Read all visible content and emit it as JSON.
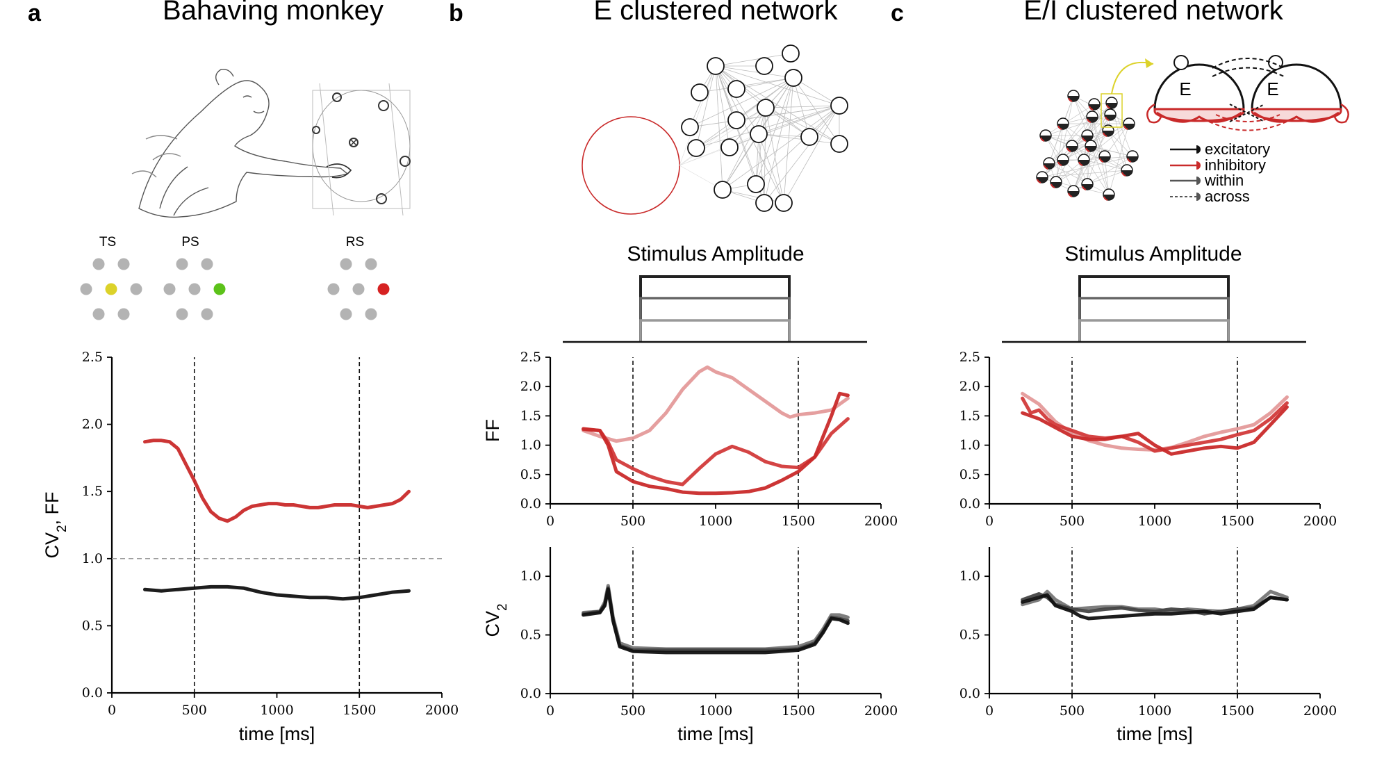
{
  "panels": {
    "a": {
      "letter": "a",
      "title": "Bahaving monkey"
    },
    "b": {
      "letter": "b",
      "title": "E clustered network"
    },
    "c": {
      "letter": "c",
      "title": "E/I clustered network"
    }
  },
  "task": {
    "labels": [
      "TS",
      "PS",
      "RS"
    ],
    "colors": {
      "inactive": "#b3b3b3",
      "TS": "#dcd22a",
      "PS": "#5cc21a",
      "RS": "#d62222"
    }
  },
  "stimulus": {
    "title": "Stimulus Amplitude",
    "levels": [
      "#222222",
      "#666666",
      "#999999"
    ]
  },
  "legend": {
    "excitatory": "excitatory",
    "inhibitory": "inhibitory",
    "within": "within",
    "across": "across"
  },
  "network_c": {
    "node_left": "E",
    "node_right": "E"
  },
  "colors": {
    "ff_dark": "#c92a2a",
    "ff_mid": "#d23a3a",
    "ff_light": "#e49a9a",
    "cv_dark": "#111111",
    "cv_mid": "#444444",
    "cv_light": "#777777",
    "reference_line": "#9a9a9a"
  },
  "chart_data": [
    {
      "id": "a",
      "type": "line",
      "xlabel": "time [ms]",
      "ylabel": "CV2, FF",
      "xlim": [
        0,
        2000
      ],
      "ylim": [
        0,
        2.5
      ],
      "xticks": [
        0,
        500,
        1000,
        1500,
        2000
      ],
      "yticks": [
        0.0,
        0.5,
        1.0,
        1.5,
        2.0,
        2.5
      ],
      "vlines": [
        500,
        1500
      ],
      "hline": 1.0,
      "series": [
        {
          "role": "FF",
          "color": "#c92a2a",
          "x": [
            200,
            250,
            300,
            350,
            400,
            450,
            500,
            550,
            600,
            650,
            700,
            750,
            800,
            850,
            900,
            950,
            1000,
            1050,
            1100,
            1150,
            1200,
            1250,
            1300,
            1350,
            1400,
            1450,
            1500,
            1550,
            1600,
            1650,
            1700,
            1750,
            1800
          ],
          "y": [
            1.87,
            1.88,
            1.88,
            1.87,
            1.82,
            1.7,
            1.58,
            1.45,
            1.35,
            1.3,
            1.28,
            1.31,
            1.36,
            1.39,
            1.4,
            1.41,
            1.41,
            1.4,
            1.4,
            1.39,
            1.38,
            1.38,
            1.39,
            1.4,
            1.4,
            1.4,
            1.39,
            1.38,
            1.39,
            1.4,
            1.41,
            1.44,
            1.5
          ]
        },
        {
          "role": "CV2",
          "color": "#111111",
          "x": [
            200,
            300,
            400,
            500,
            600,
            700,
            800,
            900,
            1000,
            1100,
            1200,
            1300,
            1400,
            1500,
            1600,
            1700,
            1800
          ],
          "y": [
            0.77,
            0.76,
            0.77,
            0.78,
            0.79,
            0.79,
            0.78,
            0.75,
            0.73,
            0.72,
            0.71,
            0.71,
            0.7,
            0.71,
            0.73,
            0.75,
            0.76
          ]
        }
      ]
    },
    {
      "id": "b-ff",
      "type": "line",
      "ylabel": "FF",
      "xlim": [
        0,
        2000
      ],
      "ylim": [
        0,
        2.5
      ],
      "xticks": [
        0,
        500,
        1000,
        1500,
        2000
      ],
      "yticks": [
        0.0,
        0.5,
        1.0,
        1.5,
        2.0,
        2.5
      ],
      "vlines": [
        500,
        1500
      ],
      "series": [
        {
          "color": "#e49a9a",
          "x": [
            200,
            300,
            400,
            500,
            600,
            700,
            800,
            900,
            950,
            1000,
            1100,
            1200,
            1300,
            1400,
            1450,
            1500,
            1600,
            1700,
            1800
          ],
          "y": [
            1.25,
            1.15,
            1.07,
            1.12,
            1.25,
            1.55,
            1.95,
            2.25,
            2.33,
            2.25,
            2.15,
            1.95,
            1.75,
            1.55,
            1.48,
            1.52,
            1.55,
            1.6,
            1.8
          ]
        },
        {
          "color": "#d23a3a",
          "x": [
            200,
            300,
            350,
            400,
            500,
            600,
            700,
            800,
            900,
            1000,
            1100,
            1200,
            1300,
            1400,
            1500,
            1600,
            1700,
            1800
          ],
          "y": [
            1.27,
            1.25,
            1.05,
            0.75,
            0.6,
            0.47,
            0.38,
            0.33,
            0.6,
            0.85,
            0.98,
            0.88,
            0.72,
            0.64,
            0.62,
            0.8,
            1.2,
            1.45
          ]
        },
        {
          "color": "#c92a2a",
          "x": [
            200,
            300,
            350,
            400,
            500,
            600,
            700,
            800,
            900,
            1000,
            1100,
            1200,
            1300,
            1400,
            1500,
            1600,
            1700,
            1750,
            1800
          ],
          "y": [
            1.28,
            1.25,
            1.0,
            0.55,
            0.38,
            0.3,
            0.26,
            0.2,
            0.18,
            0.18,
            0.19,
            0.21,
            0.27,
            0.4,
            0.55,
            0.8,
            1.5,
            1.88,
            1.85
          ]
        }
      ]
    },
    {
      "id": "b-cv",
      "type": "line",
      "xlabel": "time [ms]",
      "ylabel": "CV2",
      "xlim": [
        0,
        2000
      ],
      "ylim": [
        0,
        1.25
      ],
      "xticks": [
        0,
        500,
        1000,
        1500,
        2000
      ],
      "yticks": [
        0.0,
        0.5,
        1.0
      ],
      "vlines": [
        500,
        1500
      ],
      "series": [
        {
          "color": "#777777",
          "x": [
            200,
            300,
            330,
            350,
            380,
            420,
            500,
            700,
            1000,
            1300,
            1500,
            1600,
            1650,
            1700,
            1750,
            1800
          ],
          "y": [
            0.69,
            0.7,
            0.78,
            0.92,
            0.65,
            0.43,
            0.39,
            0.38,
            0.38,
            0.38,
            0.4,
            0.45,
            0.55,
            0.67,
            0.67,
            0.65
          ]
        },
        {
          "color": "#444444",
          "x": [
            200,
            300,
            330,
            350,
            380,
            420,
            500,
            700,
            1000,
            1300,
            1500,
            1600,
            1650,
            1700,
            1750,
            1800
          ],
          "y": [
            0.68,
            0.7,
            0.76,
            0.9,
            0.63,
            0.41,
            0.37,
            0.37,
            0.37,
            0.37,
            0.38,
            0.43,
            0.53,
            0.65,
            0.64,
            0.62
          ]
        },
        {
          "color": "#111111",
          "x": [
            200,
            300,
            330,
            350,
            380,
            420,
            500,
            700,
            1000,
            1300,
            1500,
            1600,
            1650,
            1700,
            1750,
            1800
          ],
          "y": [
            0.67,
            0.69,
            0.75,
            0.89,
            0.62,
            0.4,
            0.36,
            0.35,
            0.35,
            0.35,
            0.37,
            0.42,
            0.52,
            0.64,
            0.63,
            0.6
          ]
        }
      ]
    },
    {
      "id": "c-ff",
      "type": "line",
      "xlim": [
        0,
        2000
      ],
      "ylim": [
        0,
        2.5
      ],
      "xticks": [
        0,
        500,
        1000,
        1500,
        2000
      ],
      "yticks": [
        0.0,
        0.5,
        1.0,
        1.5,
        2.0,
        2.5
      ],
      "vlines": [
        500,
        1500
      ],
      "series": [
        {
          "color": "#e49a9a",
          "x": [
            200,
            300,
            400,
            500,
            600,
            700,
            800,
            900,
            1000,
            1100,
            1200,
            1300,
            1400,
            1500,
            1600,
            1700,
            1800
          ],
          "y": [
            1.88,
            1.7,
            1.4,
            1.2,
            1.08,
            1.0,
            0.95,
            0.93,
            0.92,
            0.96,
            1.05,
            1.15,
            1.22,
            1.28,
            1.35,
            1.55,
            1.82
          ]
        },
        {
          "color": "#d23a3a",
          "x": [
            200,
            250,
            300,
            350,
            400,
            500,
            600,
            700,
            800,
            900,
            1000,
            1100,
            1200,
            1300,
            1400,
            1500,
            1600,
            1700,
            1800
          ],
          "y": [
            1.8,
            1.55,
            1.6,
            1.45,
            1.35,
            1.25,
            1.15,
            1.12,
            1.15,
            1.05,
            0.9,
            0.95,
            1.0,
            1.05,
            1.1,
            1.18,
            1.25,
            1.45,
            1.72
          ]
        },
        {
          "color": "#c92a2a",
          "x": [
            200,
            300,
            400,
            500,
            600,
            700,
            800,
            900,
            1000,
            1100,
            1200,
            1300,
            1400,
            1500,
            1600,
            1700,
            1800
          ],
          "y": [
            1.55,
            1.45,
            1.3,
            1.15,
            1.1,
            1.1,
            1.15,
            1.2,
            1.0,
            0.85,
            0.9,
            0.95,
            0.98,
            0.95,
            1.05,
            1.35,
            1.65
          ]
        }
      ]
    },
    {
      "id": "c-cv",
      "type": "line",
      "xlabel": "time [ms]",
      "xlim": [
        0,
        2000
      ],
      "ylim": [
        0,
        1.25
      ],
      "xticks": [
        0,
        500,
        1000,
        1500,
        2000
      ],
      "yticks": [
        0.0,
        0.5,
        1.0
      ],
      "vlines": [
        500,
        1500
      ],
      "series": [
        {
          "color": "#777777",
          "x": [
            200,
            300,
            350,
            400,
            500,
            600,
            700,
            800,
            900,
            1000,
            1100,
            1200,
            1300,
            1400,
            1500,
            1600,
            1700,
            1800
          ],
          "y": [
            0.76,
            0.8,
            0.87,
            0.8,
            0.72,
            0.73,
            0.74,
            0.74,
            0.72,
            0.72,
            0.7,
            0.72,
            0.71,
            0.7,
            0.72,
            0.75,
            0.87,
            0.82
          ]
        },
        {
          "color": "#444444",
          "x": [
            200,
            300,
            350,
            400,
            500,
            600,
            700,
            800,
            900,
            1000,
            1100,
            1200,
            1300,
            1400,
            1500,
            1600,
            1700,
            1800
          ],
          "y": [
            0.8,
            0.85,
            0.82,
            0.76,
            0.72,
            0.7,
            0.72,
            0.73,
            0.71,
            0.7,
            0.72,
            0.71,
            0.68,
            0.7,
            0.72,
            0.73,
            0.82,
            0.8
          ]
        },
        {
          "color": "#111111",
          "x": [
            200,
            300,
            350,
            400,
            500,
            550,
            600,
            700,
            800,
            900,
            1000,
            1100,
            1200,
            1300,
            1400,
            1500,
            1600,
            1700,
            1800
          ],
          "y": [
            0.78,
            0.82,
            0.84,
            0.75,
            0.7,
            0.66,
            0.64,
            0.65,
            0.66,
            0.67,
            0.68,
            0.68,
            0.69,
            0.7,
            0.68,
            0.7,
            0.72,
            0.82,
            0.8
          ]
        }
      ]
    }
  ]
}
